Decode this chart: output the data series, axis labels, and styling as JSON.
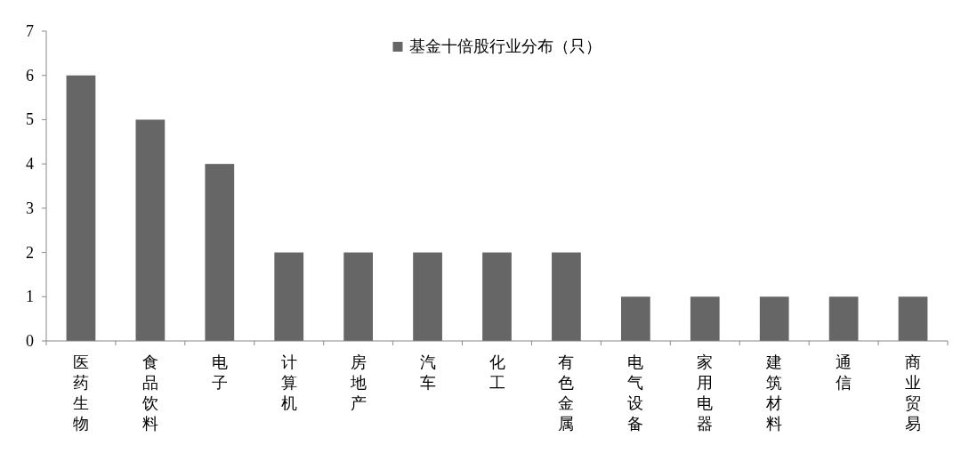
{
  "chart_data": {
    "type": "bar",
    "categories": [
      "医药生物",
      "食品饮料",
      "电子",
      "计算机",
      "房地产",
      "汽车",
      "化工",
      "有色金属",
      "电气设备",
      "家用电器",
      "建筑材料",
      "通信",
      "商业贸易"
    ],
    "series": [
      {
        "name": "基金十倍股行业分布（只）",
        "color": "#666666",
        "values": [
          6,
          5,
          4,
          2,
          2,
          2,
          2,
          2,
          1,
          1,
          1,
          1,
          1
        ]
      }
    ],
    "ylim": [
      0,
      7
    ],
    "yticks": [
      0,
      1,
      2,
      3,
      4,
      5,
      6,
      7
    ],
    "grid": false,
    "legend": "top"
  }
}
